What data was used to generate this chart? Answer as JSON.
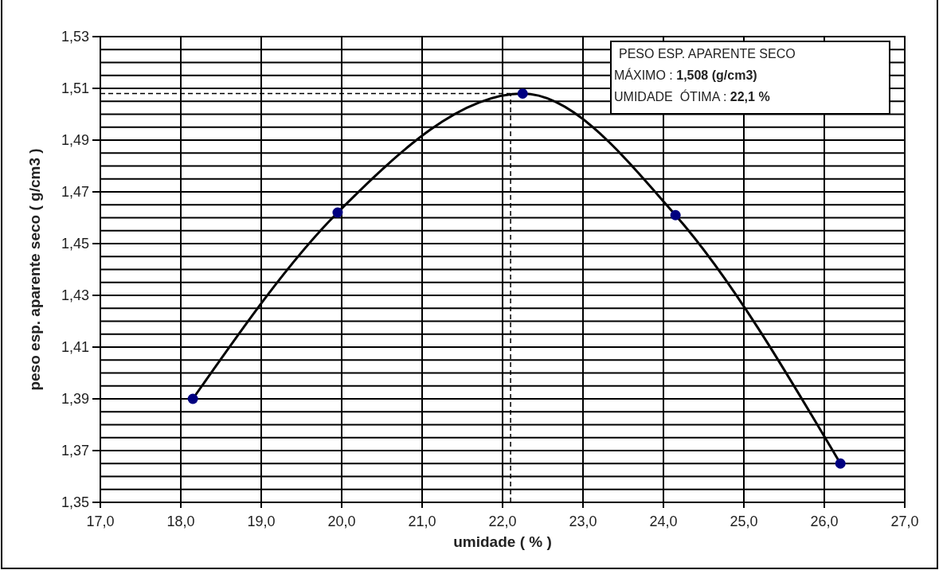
{
  "chart_data": {
    "type": "scatter",
    "xlabel": "umidade ( % )",
    "ylabel": "peso esp. aparente seco ( g/cm3 )",
    "xlim": [
      17,
      27
    ],
    "xticks": [
      {
        "value": 17,
        "label": "17,0"
      },
      {
        "value": 18,
        "label": "18,0"
      },
      {
        "value": 19,
        "label": "19,0"
      },
      {
        "value": 20,
        "label": "20,0"
      },
      {
        "value": 21,
        "label": "21,0"
      },
      {
        "value": 22,
        "label": "22,0"
      },
      {
        "value": 23,
        "label": "23,0"
      },
      {
        "value": 24,
        "label": "24,0"
      },
      {
        "value": 25,
        "label": "25,0"
      },
      {
        "value": 26,
        "label": "26,0"
      },
      {
        "value": 27,
        "label": "27,0"
      }
    ],
    "ylim": [
      1.35,
      1.53
    ],
    "yticks": [
      {
        "value": 1.35,
        "label": "1,35"
      },
      {
        "value": 1.355,
        "label": null
      },
      {
        "value": 1.36,
        "label": null
      },
      {
        "value": 1.365,
        "label": null
      },
      {
        "value": 1.37,
        "label": "1,37"
      },
      {
        "value": 1.375,
        "label": null
      },
      {
        "value": 1.38,
        "label": null
      },
      {
        "value": 1.385,
        "label": null
      },
      {
        "value": 1.39,
        "label": "1,39"
      },
      {
        "value": 1.395,
        "label": null
      },
      {
        "value": 1.4,
        "label": null
      },
      {
        "value": 1.405,
        "label": null
      },
      {
        "value": 1.41,
        "label": "1,41"
      },
      {
        "value": 1.415,
        "label": null
      },
      {
        "value": 1.42,
        "label": null
      },
      {
        "value": 1.425,
        "label": null
      },
      {
        "value": 1.43,
        "label": "1,43"
      },
      {
        "value": 1.435,
        "label": null
      },
      {
        "value": 1.44,
        "label": null
      },
      {
        "value": 1.445,
        "label": null
      },
      {
        "value": 1.45,
        "label": "1,45"
      },
      {
        "value": 1.455,
        "label": null
      },
      {
        "value": 1.46,
        "label": null
      },
      {
        "value": 1.465,
        "label": null
      },
      {
        "value": 1.47,
        "label": "1,47"
      },
      {
        "value": 1.475,
        "label": null
      },
      {
        "value": 1.48,
        "label": null
      },
      {
        "value": 1.485,
        "label": null
      },
      {
        "value": 1.49,
        "label": "1,49"
      },
      {
        "value": 1.495,
        "label": null
      },
      {
        "value": 1.5,
        "label": null
      },
      {
        "value": 1.505,
        "label": null
      },
      {
        "value": 1.51,
        "label": "1,51"
      },
      {
        "value": 1.515,
        "label": null
      },
      {
        "value": 1.52,
        "label": null
      },
      {
        "value": 1.525,
        "label": null
      },
      {
        "value": 1.53,
        "label": "1,53"
      }
    ],
    "grid": true,
    "series": [
      {
        "type": "line",
        "color": "#000000",
        "marker": "none",
        "x": [
          18.15,
          19.95,
          22.25,
          24.15,
          26.2
        ],
        "values": [
          1.39,
          1.462,
          1.508,
          1.461,
          1.365
        ]
      },
      {
        "type": "scatter",
        "color": "#000080",
        "marker": "circle",
        "x": [
          18.15,
          19.95,
          22.25,
          24.15,
          26.2
        ],
        "values": [
          1.39,
          1.462,
          1.508,
          1.461,
          1.365
        ]
      }
    ],
    "ref_lines": [
      {
        "axis": "y",
        "value": 1.508,
        "line_style": "dashed",
        "color": "#000000"
      },
      {
        "axis": "x",
        "value": 22.1,
        "line_style": "dashed",
        "color": "#000000"
      }
    ],
    "annotations": [
      "PESO ESP. APARENTE SECO",
      "MÁXIMO : 1,508 (g/cm3)",
      "UMIDADE  ÓTIMA : 22,1 %"
    ]
  }
}
